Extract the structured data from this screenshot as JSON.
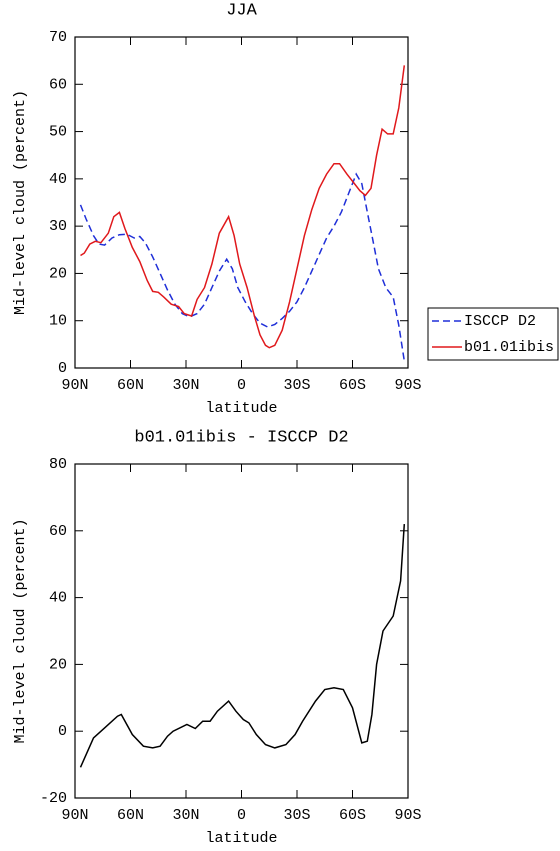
{
  "chart_data": [
    {
      "type": "line",
      "title": "JJA",
      "xlabel": "latitude",
      "ylabel": "Mid-level cloud (percent)",
      "xlim": [
        90,
        -90
      ],
      "xticks": [
        {
          "value": 90,
          "label": "90N"
        },
        {
          "value": 60,
          "label": "60N"
        },
        {
          "value": 30,
          "label": "30N"
        },
        0,
        {
          "value": -30,
          "label": "30S"
        },
        {
          "value": -60,
          "label": "60S"
        },
        {
          "value": -90,
          "label": "90S"
        }
      ],
      "ylim": [
        0,
        70
      ],
      "yticks": [
        0,
        10,
        20,
        30,
        40,
        50,
        60,
        70
      ],
      "legend": "right",
      "series": [
        {
          "name": "ISCCP D2",
          "color": "#1f2fd8",
          "dash": true,
          "x": [
            87,
            84,
            80,
            77,
            74,
            70,
            66,
            62,
            58,
            55,
            52,
            48,
            44,
            40,
            36,
            32,
            28,
            24,
            20,
            16,
            12,
            8,
            5,
            2,
            -2,
            -6,
            -10,
            -14,
            -18,
            -22,
            -26,
            -30,
            -34,
            -38,
            -42,
            -46,
            -50,
            -54,
            -58,
            -62,
            -65,
            -68,
            -71,
            -74,
            -78,
            -82,
            -85,
            -88
          ],
          "values": [
            34.5,
            31.5,
            28,
            26.2,
            26,
            27.5,
            28.2,
            28.3,
            27.5,
            27.8,
            26.5,
            23.5,
            20,
            16.5,
            13.5,
            11.5,
            10.8,
            11.5,
            13.5,
            17,
            20.5,
            23,
            21,
            17,
            14,
            11.5,
            9.5,
            8.7,
            9.2,
            10.5,
            12,
            14,
            17,
            20.5,
            24,
            27.5,
            30,
            33,
            37,
            41,
            39,
            33,
            27,
            21,
            17,
            15,
            9,
            1.5
          ]
        },
        {
          "name": "b01.01ibis",
          "color": "#e0191c",
          "dash": false,
          "x": [
            87,
            85,
            82,
            79,
            76,
            72,
            69,
            66,
            63,
            59,
            55,
            51,
            48,
            45,
            42,
            38,
            34,
            31,
            27,
            24,
            20,
            16,
            12,
            7,
            4,
            1,
            -3,
            -7,
            -10,
            -13,
            -15,
            -18,
            -22,
            -26,
            -30,
            -34,
            -38,
            -42,
            -46,
            -50,
            -53,
            -57,
            -61,
            -64,
            -67,
            -70,
            -73,
            -76,
            -79,
            -82,
            -85,
            -88
          ],
          "values": [
            23.8,
            24.3,
            26.2,
            26.8,
            26.5,
            28.5,
            32,
            32.9,
            29.5,
            25.5,
            22.5,
            18.5,
            16.2,
            16,
            15,
            13.5,
            13,
            11.5,
            11,
            14.5,
            17,
            22,
            28.5,
            32,
            28,
            22,
            17,
            11,
            7,
            4.8,
            4.3,
            4.8,
            8,
            14,
            21,
            28,
            33.5,
            38,
            41,
            43.2,
            43.2,
            41,
            39,
            37.5,
            36.5,
            38,
            45,
            50.5,
            49.5,
            49.5,
            55,
            64
          ]
        }
      ]
    },
    {
      "type": "line",
      "title": "b01.01ibis - ISCCP D2",
      "xlabel": "latitude",
      "ylabel": "Mid-level cloud (percent)",
      "xlim": [
        90,
        -90
      ],
      "xticks": [
        {
          "value": 90,
          "label": "90N"
        },
        {
          "value": 60,
          "label": "60N"
        },
        {
          "value": 30,
          "label": "30N"
        },
        0,
        {
          "value": -30,
          "label": "30S"
        },
        {
          "value": -60,
          "label": "60S"
        },
        {
          "value": -90,
          "label": "90S"
        }
      ],
      "ylim": [
        -20,
        80
      ],
      "yticks": [
        -20,
        0,
        20,
        40,
        60,
        80
      ],
      "series": [
        {
          "color": "#000000",
          "dash": false,
          "x": [
            87,
            80,
            74,
            67,
            65,
            59,
            53,
            48,
            44,
            40,
            37,
            29.5,
            25,
            21,
            17,
            13,
            7,
            3,
            -1,
            -4,
            -8,
            -13,
            -18,
            -24,
            -29,
            -33,
            -40,
            -45,
            -50,
            -55,
            -60,
            -65,
            -68,
            -70.5,
            -73,
            -76.5,
            -82,
            -86,
            -88
          ],
          "values": [
            -10.8,
            -2,
            1,
            4.5,
            5,
            -1,
            -4.5,
            -5,
            -4.5,
            -1.5,
            0,
            2,
            0.8,
            3,
            3,
            6,
            9,
            6,
            3.5,
            2.5,
            -1,
            -4,
            -5,
            -4,
            -1,
            3,
            9,
            12.5,
            13,
            12.5,
            7,
            -3.5,
            -3,
            5,
            20,
            30,
            34.5,
            45,
            62
          ]
        }
      ]
    }
  ]
}
